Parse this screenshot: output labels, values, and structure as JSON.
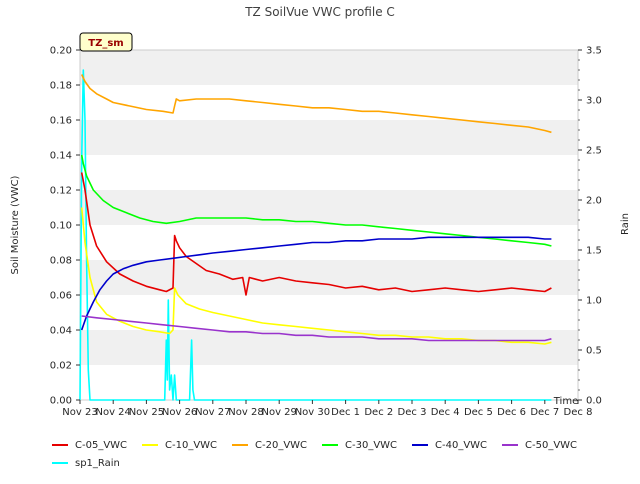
{
  "chart_data": {
    "type": "line",
    "title": "TZ SoilVue VWC profile C",
    "badge": "TZ_sm",
    "xlabel": "Time",
    "ylabel": "Soil Moisture (VWC)",
    "y2label": "Rain",
    "x_tick_labels": [
      "Nov 23",
      "Nov 24",
      "Nov 25",
      "Nov 26",
      "Nov 27",
      "Nov 28",
      "Nov 29",
      "Nov 30",
      "Dec 1",
      "Dec 2",
      "Dec 3",
      "Dec 4",
      "Dec 5",
      "Dec 6",
      "Dec 7",
      "Dec 8"
    ],
    "xlim": [
      0,
      15
    ],
    "ylim": [
      0,
      0.2
    ],
    "y_ticks": [
      "0.00",
      "0.02",
      "0.04",
      "0.06",
      "0.08",
      "0.10",
      "0.12",
      "0.14",
      "0.16",
      "0.18",
      "0.20"
    ],
    "y2lim": [
      0,
      3.5
    ],
    "y2_ticks": [
      "0.0",
      "0.5",
      "1.0",
      "1.5",
      "2.0",
      "2.5",
      "3.0",
      "3.5"
    ],
    "grid": "horizontal bands",
    "legend_placement": "bottom",
    "series": [
      {
        "name": "C-05_VWC",
        "color": "#e60000",
        "axis": "left",
        "x": [
          0.05,
          0.15,
          0.3,
          0.5,
          0.8,
          1.2,
          1.6,
          2.0,
          2.4,
          2.6,
          2.8,
          2.85,
          2.9,
          3.0,
          3.2,
          3.5,
          3.8,
          4.2,
          4.6,
          4.9,
          5.0,
          5.1,
          5.5,
          6.0,
          6.5,
          7.0,
          7.5,
          8.0,
          8.5,
          9.0,
          9.5,
          10.0,
          10.5,
          11.0,
          11.5,
          12.0,
          12.5,
          13.0,
          13.5,
          14.0,
          14.2
        ],
        "y": [
          0.13,
          0.12,
          0.1,
          0.088,
          0.079,
          0.072,
          0.068,
          0.065,
          0.063,
          0.062,
          0.064,
          0.094,
          0.091,
          0.087,
          0.082,
          0.078,
          0.074,
          0.072,
          0.069,
          0.07,
          0.06,
          0.07,
          0.068,
          0.07,
          0.068,
          0.067,
          0.066,
          0.064,
          0.065,
          0.063,
          0.064,
          0.062,
          0.063,
          0.064,
          0.063,
          0.062,
          0.063,
          0.064,
          0.063,
          0.062,
          0.064
        ]
      },
      {
        "name": "C-10_VWC",
        "color": "#ffff00",
        "axis": "left",
        "x": [
          0.05,
          0.15,
          0.3,
          0.5,
          0.8,
          1.2,
          1.6,
          2.0,
          2.4,
          2.7,
          2.8,
          2.85,
          2.95,
          3.2,
          3.6,
          4.0,
          4.5,
          5.0,
          5.5,
          6.0,
          6.5,
          7.0,
          7.5,
          8.0,
          8.5,
          9.0,
          9.5,
          10.0,
          10.5,
          11.0,
          11.5,
          12.0,
          12.5,
          13.0,
          13.5,
          14.0,
          14.2
        ],
        "y": [
          0.11,
          0.09,
          0.07,
          0.056,
          0.049,
          0.045,
          0.042,
          0.04,
          0.039,
          0.038,
          0.04,
          0.064,
          0.06,
          0.055,
          0.052,
          0.05,
          0.048,
          0.046,
          0.044,
          0.043,
          0.042,
          0.041,
          0.04,
          0.039,
          0.038,
          0.037,
          0.037,
          0.036,
          0.036,
          0.035,
          0.035,
          0.034,
          0.034,
          0.033,
          0.033,
          0.032,
          0.033
        ]
      },
      {
        "name": "C-20_VWC",
        "color": "#ffa500",
        "axis": "left",
        "x": [
          0.05,
          0.15,
          0.3,
          0.5,
          0.8,
          1.0,
          1.5,
          2.0,
          2.5,
          2.8,
          2.85,
          2.9,
          3.0,
          3.5,
          4.0,
          4.5,
          5.0,
          5.5,
          6.0,
          6.5,
          7.0,
          7.5,
          8.0,
          8.5,
          9.0,
          9.5,
          10.0,
          10.5,
          11.0,
          11.5,
          12.0,
          12.5,
          13.0,
          13.5,
          14.0,
          14.2
        ],
        "y": [
          0.186,
          0.182,
          0.178,
          0.175,
          0.172,
          0.17,
          0.168,
          0.166,
          0.165,
          0.164,
          0.168,
          0.172,
          0.171,
          0.172,
          0.172,
          0.172,
          0.171,
          0.17,
          0.169,
          0.168,
          0.167,
          0.167,
          0.166,
          0.165,
          0.165,
          0.164,
          0.163,
          0.162,
          0.161,
          0.16,
          0.159,
          0.158,
          0.157,
          0.156,
          0.154,
          0.153
        ]
      },
      {
        "name": "C-30_VWC",
        "color": "#00ff00",
        "axis": "left",
        "x": [
          0.05,
          0.1,
          0.2,
          0.4,
          0.7,
          1.0,
          1.4,
          1.8,
          2.2,
          2.6,
          3.0,
          3.5,
          4.0,
          4.5,
          5.0,
          5.5,
          6.0,
          6.5,
          7.0,
          7.5,
          8.0,
          8.5,
          9.0,
          9.5,
          10.0,
          10.5,
          11.0,
          11.5,
          12.0,
          12.5,
          13.0,
          13.5,
          14.0,
          14.2
        ],
        "y": [
          0.14,
          0.135,
          0.128,
          0.12,
          0.114,
          0.11,
          0.107,
          0.104,
          0.102,
          0.101,
          0.102,
          0.104,
          0.104,
          0.104,
          0.104,
          0.103,
          0.103,
          0.102,
          0.102,
          0.101,
          0.1,
          0.1,
          0.099,
          0.098,
          0.097,
          0.096,
          0.095,
          0.094,
          0.093,
          0.092,
          0.091,
          0.09,
          0.089,
          0.088
        ]
      },
      {
        "name": "C-40_VWC",
        "color": "#0000cc",
        "axis": "left",
        "x": [
          0.05,
          0.2,
          0.4,
          0.6,
          0.8,
          1.0,
          1.3,
          1.6,
          2.0,
          2.4,
          2.8,
          3.2,
          3.6,
          4.0,
          4.5,
          5.0,
          5.5,
          6.0,
          6.5,
          7.0,
          7.5,
          8.0,
          8.5,
          9.0,
          9.5,
          10.0,
          10.5,
          11.0,
          11.5,
          12.0,
          12.5,
          13.0,
          13.5,
          14.0,
          14.2
        ],
        "y": [
          0.04,
          0.048,
          0.056,
          0.063,
          0.068,
          0.072,
          0.075,
          0.077,
          0.079,
          0.08,
          0.081,
          0.082,
          0.083,
          0.084,
          0.085,
          0.086,
          0.087,
          0.088,
          0.089,
          0.09,
          0.09,
          0.091,
          0.091,
          0.092,
          0.092,
          0.092,
          0.093,
          0.093,
          0.093,
          0.093,
          0.093,
          0.093,
          0.093,
          0.092,
          0.092
        ]
      },
      {
        "name": "C-50_VWC",
        "color": "#9933cc",
        "axis": "left",
        "x": [
          0.05,
          0.5,
          1.0,
          1.5,
          2.0,
          2.5,
          3.0,
          3.5,
          4.0,
          4.5,
          5.0,
          5.5,
          6.0,
          6.5,
          7.0,
          7.5,
          8.0,
          8.5,
          9.0,
          9.5,
          10.0,
          10.5,
          11.0,
          11.5,
          12.0,
          12.5,
          13.0,
          13.5,
          14.0,
          14.2
        ],
        "y": [
          0.048,
          0.047,
          0.046,
          0.045,
          0.044,
          0.043,
          0.042,
          0.041,
          0.04,
          0.039,
          0.039,
          0.038,
          0.038,
          0.037,
          0.037,
          0.036,
          0.036,
          0.036,
          0.035,
          0.035,
          0.035,
          0.034,
          0.034,
          0.034,
          0.034,
          0.034,
          0.034,
          0.034,
          0.034,
          0.035
        ]
      },
      {
        "name": "sp1_Rain",
        "color": "#00ffff",
        "axis": "right",
        "x": [
          0.0,
          0.05,
          0.1,
          0.15,
          0.2,
          0.25,
          0.3,
          0.35,
          0.4,
          2.5,
          2.55,
          2.6,
          2.63,
          2.66,
          2.7,
          2.75,
          2.8,
          2.85,
          2.9,
          3.3,
          3.33,
          3.36,
          3.4,
          3.45,
          14.2
        ],
        "y": [
          0.0,
          2.4,
          3.3,
          2.8,
          1.4,
          0.3,
          0.0,
          0.0,
          0.0,
          0.0,
          0.0,
          0.6,
          0.2,
          1.0,
          0.1,
          0.25,
          0.0,
          0.25,
          0.0,
          0.0,
          0.3,
          0.6,
          0.1,
          0.0,
          0.0
        ]
      }
    ]
  }
}
